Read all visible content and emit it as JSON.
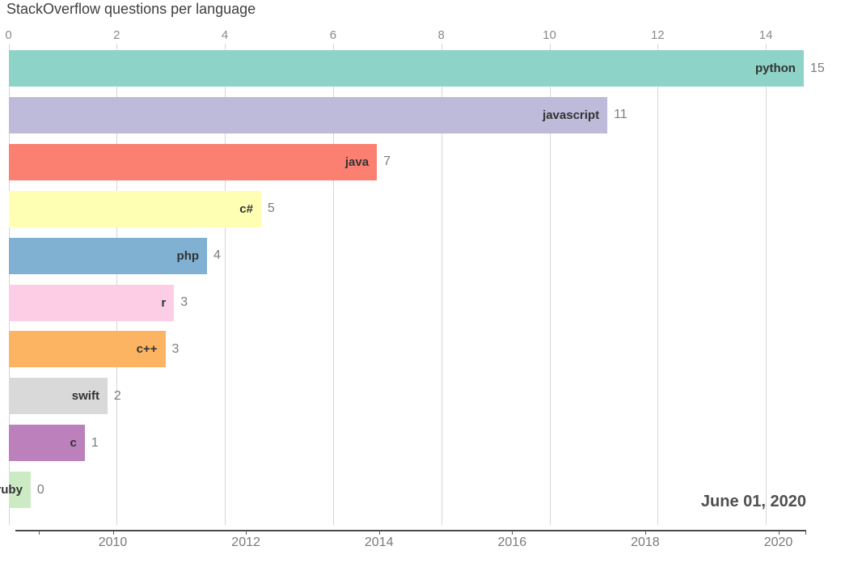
{
  "title": "StackOverflow questions per language",
  "date_label": "June 01, 2020",
  "chart_data": {
    "type": "bar",
    "orientation": "horizontal",
    "title": "StackOverflow questions per language",
    "annotation": "June 01, 2020",
    "legend": false,
    "grid": true,
    "categories": [
      "python",
      "javascript",
      "java",
      "c#",
      "php",
      "r",
      "c++",
      "swift",
      "c",
      "ruby"
    ],
    "values": [
      15,
      11,
      7,
      5,
      4,
      3,
      3,
      2,
      1,
      0
    ],
    "bar_lengths": [
      14.7,
      11.07,
      6.81,
      4.67,
      3.67,
      3.06,
      2.9,
      1.83,
      1.41,
      0.41
    ],
    "colors": [
      "#8dd3c7",
      "#bebada",
      "#fb8072",
      "#ffffb3",
      "#80b1d3",
      "#fccde5",
      "#fdb462",
      "#d9d9d9",
      "#bc80bd",
      "#ccebc5"
    ],
    "value_axis": {
      "position": "top",
      "ticks": [
        0,
        2,
        4,
        6,
        8,
        10,
        12,
        14
      ],
      "range": [
        0,
        15.8
      ]
    },
    "time_axis": {
      "position": "bottom",
      "tick_labels": [
        "2010",
        "2012",
        "2014",
        "2016",
        "2018",
        "2020"
      ],
      "start_year": 2008.5,
      "end_year": 2020.42
    }
  },
  "style_colors": {
    "grid": "#d6d6d6",
    "axis_line": "#4a4a4a",
    "title_text": "#3f3f3f",
    "tick_text": "#8a8a8a",
    "bar_label_text": "#333333",
    "value_text": "#7d7d7d",
    "date_text": "#4f4f4f"
  }
}
